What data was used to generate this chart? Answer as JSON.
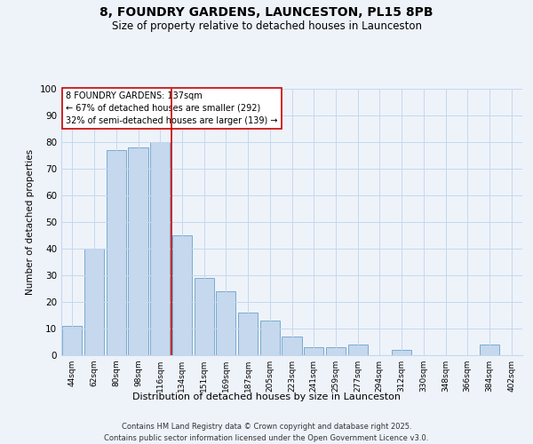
{
  "title_line1": "8, FOUNDRY GARDENS, LAUNCESTON, PL15 8PB",
  "title_line2": "Size of property relative to detached houses in Launceston",
  "xlabel": "Distribution of detached houses by size in Launceston",
  "ylabel": "Number of detached properties",
  "bar_labels": [
    "44sqm",
    "62sqm",
    "80sqm",
    "98sqm",
    "116sqm",
    "134sqm",
    "151sqm",
    "169sqm",
    "187sqm",
    "205sqm",
    "223sqm",
    "241sqm",
    "259sqm",
    "277sqm",
    "294sqm",
    "312sqm",
    "330sqm",
    "348sqm",
    "366sqm",
    "384sqm",
    "402sqm"
  ],
  "bar_values": [
    11,
    40,
    77,
    78,
    80,
    45,
    29,
    24,
    16,
    13,
    7,
    3,
    3,
    4,
    0,
    2,
    0,
    0,
    0,
    4,
    0
  ],
  "bar_color": "#c5d8ed",
  "bar_edge_color": "#7aaad0",
  "vline_x_index": 4.5,
  "vline_color": "#cc0000",
  "ylim": [
    0,
    100
  ],
  "yticks": [
    0,
    10,
    20,
    30,
    40,
    50,
    60,
    70,
    80,
    90,
    100
  ],
  "annotation_box_color": "#ffffff",
  "annotation_box_edge": "#cc0000",
  "footer_line1": "Contains HM Land Registry data © Crown copyright and database right 2025.",
  "footer_line2": "Contains public sector information licensed under the Open Government Licence v3.0.",
  "grid_color": "#c5d8ed",
  "bg_color": "#eef3fa"
}
